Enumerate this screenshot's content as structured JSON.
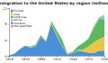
{
  "chart_data": {
    "type": "area",
    "stacked": true,
    "title": "Immigration to the United States by region (millions)",
    "x": [
      1820,
      1830,
      1840,
      1850,
      1860,
      1870,
      1880,
      1890,
      1900,
      1910,
      1920,
      1930,
      1940,
      1950,
      1960,
      1970,
      1980,
      1990,
      2000
    ],
    "xlim": [
      1820,
      2000
    ],
    "xticks": [
      1820,
      1850,
      1880,
      1910,
      1940,
      1970,
      2000
    ],
    "ylim": [
      0,
      12
    ],
    "yticks": [
      0,
      4,
      8,
      12
    ],
    "grid": false,
    "legend": "top-left",
    "series": [
      {
        "name": "Europe",
        "color": "#4a90d9",
        "values": [
          0.1,
          0.5,
          1.6,
          2.5,
          2.1,
          2.3,
          4.7,
          3.6,
          8.1,
          4.9,
          2.5,
          0.35,
          0.6,
          1.3,
          1.1,
          0.8,
          0.7,
          1.3,
          1.3
        ]
      },
      {
        "name": "Asia",
        "color": "#e8c547",
        "values": [
          0,
          0,
          0,
          0.04,
          0.07,
          0.12,
          0.07,
          0.07,
          0.3,
          0.27,
          0.11,
          0.02,
          0.03,
          0.15,
          0.43,
          1.6,
          2.7,
          2.9,
          3.5
        ]
      },
      {
        "name": "Americas",
        "color": "#5cb85c",
        "values": [
          0.01,
          0.03,
          0.06,
          0.08,
          0.13,
          0.36,
          0.4,
          0.04,
          0.36,
          1.1,
          1.5,
          0.13,
          0.35,
          0.9,
          1.7,
          1.9,
          3.6,
          5.1,
          4.4
        ]
      },
      {
        "name": "Africa",
        "color": "#7fd1d1",
        "values": [
          0,
          0,
          0,
          0,
          0,
          0,
          0,
          0,
          0,
          0.01,
          0,
          0,
          0.007,
          0.014,
          0.03,
          0.08,
          0.14,
          0.35,
          0.76
        ]
      },
      {
        "name": "Oceania",
        "color": "#b07cc6",
        "values": [
          0,
          0,
          0,
          0,
          0.04,
          0.01,
          0.01,
          0,
          0.01,
          0.01,
          0.01,
          0,
          0.01,
          0.01,
          0.03,
          0.04,
          0.04,
          0.06,
          0.07
        ]
      },
      {
        "name": "Not specified",
        "color": "#a6a6a6",
        "values": [
          0,
          0,
          0,
          0,
          0,
          0,
          0,
          0,
          0,
          0,
          0,
          0,
          0,
          0,
          0,
          0,
          0.3,
          0.03,
          0.2
        ]
      }
    ]
  }
}
